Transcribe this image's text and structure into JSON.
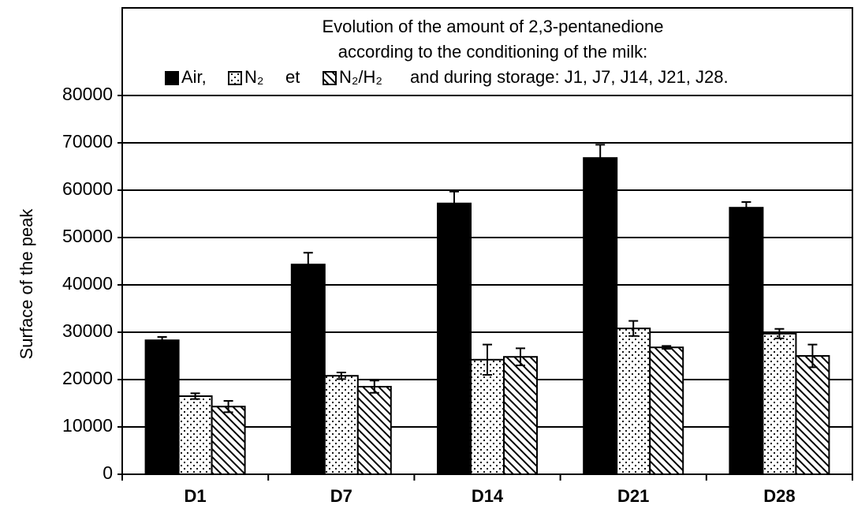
{
  "chart_data": {
    "type": "bar",
    "title": [
      "Evolution of the amount of 2,3-pentanedione",
      "according to the conditioning of the milk:"
    ],
    "legend_joiner": "et",
    "legend_suffix": "and during storage:  J1, J7, J14, J21, J28.",
    "y_label": "Surface of the peak",
    "categories": [
      "D1",
      "D7",
      "D14",
      "D21",
      "D28"
    ],
    "series": [
      {
        "name": "Air,",
        "color": "#000000",
        "pattern": "solid",
        "values": [
          28300,
          44300,
          57200,
          66800,
          56300
        ],
        "errors": [
          700,
          2500,
          2500,
          2800,
          1200
        ]
      },
      {
        "name": "N₂",
        "color": "#000000",
        "pattern": "dots",
        "values": [
          16500,
          20800,
          24200,
          30800,
          29700
        ],
        "errors": [
          600,
          700,
          3200,
          1600,
          1000
        ]
      },
      {
        "name": "N₂/H₂",
        "color": "#000000",
        "pattern": "hatch",
        "values": [
          14300,
          18500,
          24800,
          26800,
          25000
        ],
        "errors": [
          1200,
          1300,
          1800,
          300,
          2400
        ]
      }
    ],
    "ylim": [
      0,
      98500
    ],
    "yticks": [
      0,
      10000,
      20000,
      30000,
      40000,
      50000,
      60000,
      70000,
      80000
    ],
    "grid": true
  }
}
